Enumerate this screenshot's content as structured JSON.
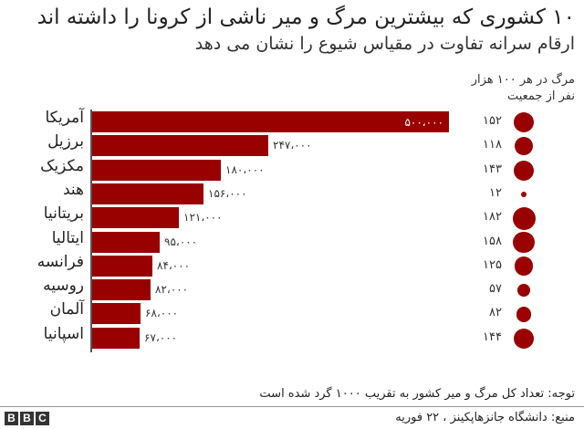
{
  "header": {
    "title": "۱۰ کشوری که بیشترین مرگ و میر ناشی از کرونا را داشته اند",
    "subtitle": "ارقام سرانه تفاوت در مقیاس شیوع را نشان می دهد",
    "rate_label_line1": "مرگ در هر ۱۰۰ هزار",
    "rate_label_line2": "نفر از جمعیت"
  },
  "rows": [
    {
      "country": "آمریکا",
      "value_label": "۵۰۰،۰۰۰",
      "rate_label": "۱۵۲"
    },
    {
      "country": "برزیل",
      "value_label": "۲۴۷،۰۰۰",
      "rate_label": "۱۱۸"
    },
    {
      "country": "مکزیک",
      "value_label": "۱۸۰،۰۰۰",
      "rate_label": "۱۴۳"
    },
    {
      "country": "هند",
      "value_label": "۱۵۶،۰۰۰",
      "rate_label": "۱۲"
    },
    {
      "country": "بریتانیا",
      "value_label": "۱۲۱،۰۰۰",
      "rate_label": "۱۸۲"
    },
    {
      "country": "ایتالیا",
      "value_label": "۹۵،۰۰۰",
      "rate_label": "۱۵۸"
    },
    {
      "country": "فرانسه",
      "value_label": "۸۴،۰۰۰",
      "rate_label": "۱۲۵"
    },
    {
      "country": "روسیه",
      "value_label": "۸۲،۰۰۰",
      "rate_label": "۵۷"
    },
    {
      "country": "آلمان",
      "value_label": "۶۸،۰۰۰",
      "rate_label": "۸۲"
    },
    {
      "country": "اسپانیا",
      "value_label": "۶۷،۰۰۰",
      "rate_label": "۱۴۴"
    }
  ],
  "footer": {
    "note": "توجه: تعداد کل مرگ و میر کشور به تقریب ۱۰۰۰ گرد شده است",
    "source": "منبع: دانشگاه جانزهاپکینز ، ۲۲ فوریه",
    "logo_letters": [
      "B",
      "B",
      "C"
    ]
  },
  "colors": {
    "bar": "#990000",
    "dot": "#990000"
  },
  "chart_data": {
    "type": "bar",
    "orientation": "horizontal",
    "title": "۱۰ کشوری که بیشترین مرگ و میر ناشی از کرونا را داشته اند",
    "subtitle": "ارقام سرانه تفاوت در مقیاس شیوع را نشان می دهد",
    "categories": [
      "آمریکا",
      "برزیل",
      "مکزیک",
      "هند",
      "بریتانیا",
      "ایتالیا",
      "فرانسه",
      "روسیه",
      "آلمان",
      "اسپانیا"
    ],
    "series": [
      {
        "name": "total_deaths",
        "values": [
          500000,
          247000,
          180000,
          156000,
          121000,
          95000,
          84000,
          82000,
          68000,
          67000
        ]
      },
      {
        "name": "مرگ در هر ۱۰۰ هزار نفر از جمعیت",
        "type": "bubble",
        "values": [
          152,
          118,
          143,
          12,
          182,
          158,
          125,
          57,
          82,
          144
        ]
      }
    ],
    "xlabel": "",
    "ylabel": "",
    "xlim": [
      0,
      500000
    ],
    "grid": false,
    "legend": "none"
  }
}
